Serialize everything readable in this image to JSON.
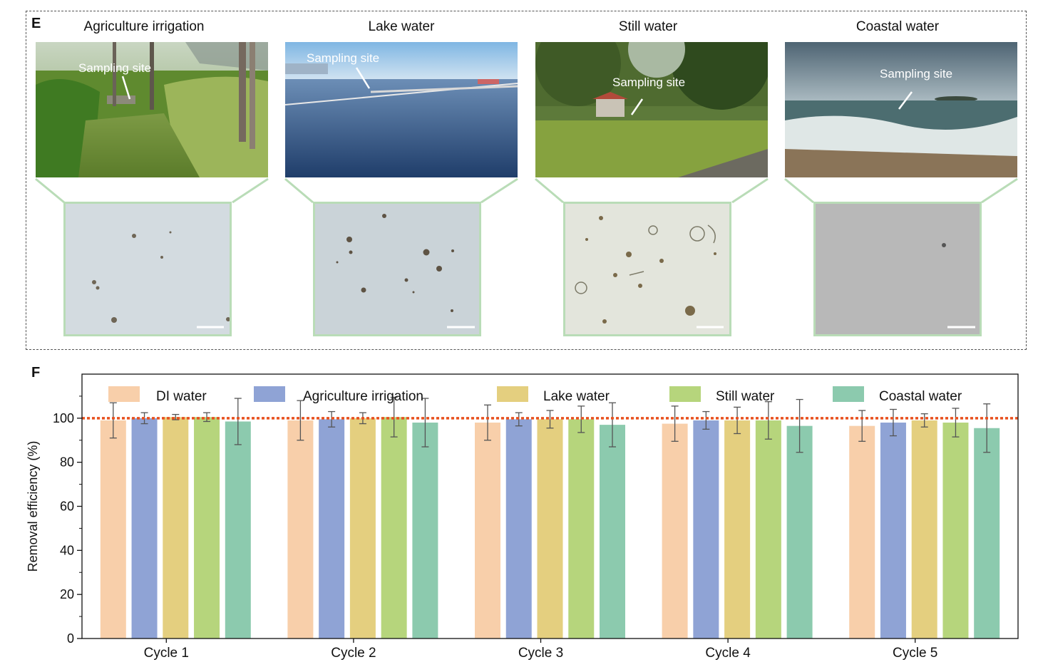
{
  "panel_e": {
    "label": "E",
    "sites": [
      {
        "title": "Agriculture irrigation",
        "annotation": "Sampling site",
        "photo": "agriculture-irrigation-photo",
        "micro": "agriculture-micrograph"
      },
      {
        "title": "Lake water",
        "annotation": "Sampling site",
        "photo": "lake-water-photo",
        "micro": "lake-micrograph"
      },
      {
        "title": "Still water",
        "annotation": "Sampling site",
        "photo": "still-water-photo",
        "micro": "still-water-micrograph"
      },
      {
        "title": "Coastal water",
        "annotation": "Sampling site",
        "photo": "coastal-water-photo",
        "micro": "coastal-micrograph"
      }
    ]
  },
  "panel_f": {
    "label": "F"
  },
  "chart_data": {
    "type": "bar",
    "title": "",
    "xlabel": "",
    "ylabel": "Removal efficiency (%)",
    "ylim": [
      0,
      120
    ],
    "yticks": [
      0,
      20,
      40,
      60,
      80,
      100
    ],
    "categories": [
      "Cycle 1",
      "Cycle 2",
      "Cycle 3",
      "Cycle 4",
      "Cycle 5"
    ],
    "reference_line": {
      "y": 100,
      "style": "dotted",
      "color": "#e8501e"
    },
    "legend_position": "top",
    "grid": false,
    "series": [
      {
        "name": "DI water",
        "color": "#f8cfaa",
        "values": [
          99.0,
          99.0,
          98.0,
          97.5,
          96.5
        ],
        "errors": [
          8,
          9,
          8,
          8,
          7
        ]
      },
      {
        "name": "Agriculture irrigation",
        "color": "#8fa3d5",
        "values": [
          100.0,
          99.5,
          99.5,
          99.0,
          98.0
        ],
        "errors": [
          2.5,
          3.5,
          3,
          4,
          6
        ]
      },
      {
        "name": "Lake water",
        "color": "#e4cf7f",
        "values": [
          100.5,
          100.0,
          99.5,
          99.0,
          99.0
        ],
        "errors": [
          1.2,
          2.5,
          4,
          6,
          3
        ]
      },
      {
        "name": "Still water",
        "color": "#b6d57c",
        "values": [
          100.5,
          100.5,
          99.5,
          99.0,
          98.0
        ],
        "errors": [
          2,
          9,
          6,
          8.5,
          6.5
        ]
      },
      {
        "name": "Coastal water",
        "color": "#8ccaae",
        "values": [
          98.5,
          98.0,
          97.0,
          96.5,
          95.5
        ],
        "errors": [
          10.5,
          11,
          10,
          12,
          11
        ]
      }
    ]
  }
}
